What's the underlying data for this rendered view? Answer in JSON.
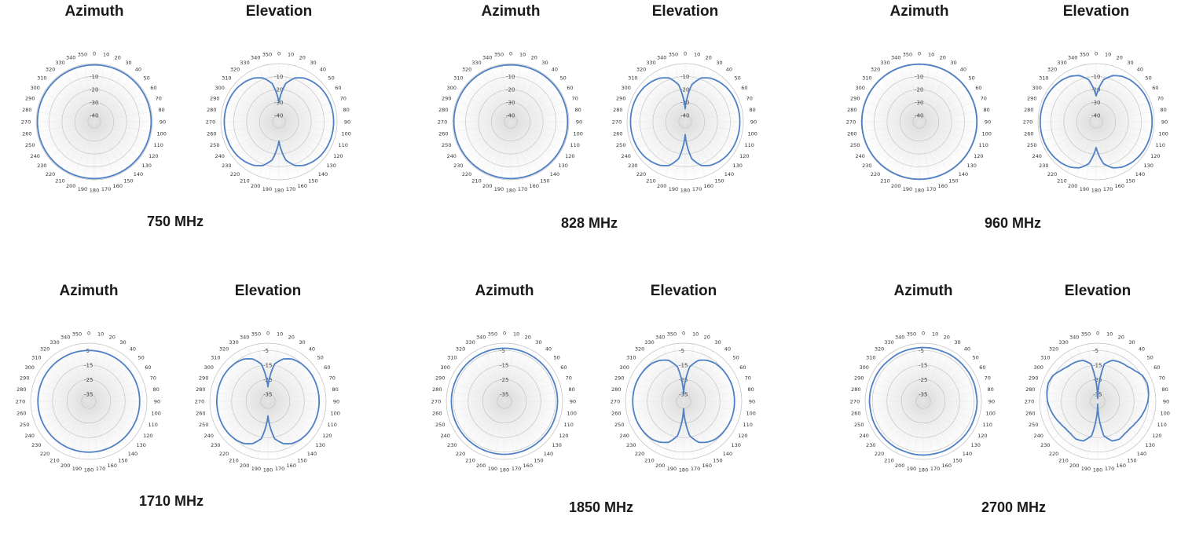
{
  "panels": [
    {
      "frequency": "750 MHz",
      "az_title": "Azimuth",
      "el_title": "Elevation",
      "radial_ticks": [
        "-10",
        "-20",
        "-30",
        "-40"
      ]
    },
    {
      "frequency": "828 MHz",
      "az_title": "Azimuth",
      "el_title": "Elevation",
      "radial_ticks": [
        "-10",
        "-20",
        "-30",
        "-40"
      ]
    },
    {
      "frequency": "960 MHz",
      "az_title": "Azimuth",
      "el_title": "Elevation",
      "radial_ticks": [
        "-10",
        "-20",
        "-30",
        "-40"
      ]
    },
    {
      "frequency": "1710 MHz",
      "az_title": "Azimuth",
      "el_title": "Elevation",
      "radial_ticks": [
        "-5",
        "-15",
        "-25",
        "-35"
      ]
    },
    {
      "frequency": "1850 MHz",
      "az_title": "Azimuth",
      "el_title": "Elevation",
      "radial_ticks": [
        "-5",
        "-15",
        "-25",
        "-35"
      ]
    },
    {
      "frequency": "2700 MHz",
      "az_title": "Azimuth",
      "el_title": "Elevation",
      "radial_ticks": [
        "-5",
        "-15",
        "-25",
        "-35"
      ]
    }
  ],
  "chart_data": [
    {
      "type": "polar-line",
      "title": "Azimuth",
      "subtitle": "750 MHz",
      "angle_ticks_deg": [
        0,
        10,
        20,
        30,
        40,
        50,
        60,
        70,
        80,
        90,
        100,
        110,
        120,
        130,
        140,
        150,
        160,
        170,
        180,
        190,
        200,
        210,
        220,
        230,
        240,
        250,
        260,
        270,
        280,
        290,
        300,
        310,
        320,
        330,
        340,
        350
      ],
      "radial_ticks": [
        -10,
        -20,
        -30,
        -40
      ],
      "rlim": [
        -45,
        0
      ],
      "series": [
        {
          "pattern": "omni",
          "values_db": [
            -1,
            -1,
            -1,
            -1,
            -1,
            -1,
            -1,
            -1,
            -1,
            -1,
            -1,
            -1,
            -1,
            -1,
            -1,
            -1,
            -1,
            -1,
            -1,
            -1,
            -1,
            -1,
            -1,
            -1,
            -1,
            -1,
            -1,
            -1,
            -1,
            -1,
            -1,
            -1,
            -1,
            -1,
            -1,
            -1
          ]
        }
      ],
      "line_color": "#4f7fc4"
    },
    {
      "type": "polar-line",
      "title": "Elevation",
      "subtitle": "750 MHz",
      "angle_ticks_deg": [
        0,
        10,
        20,
        30,
        40,
        50,
        60,
        70,
        80,
        90,
        100,
        110,
        120,
        130,
        140,
        150,
        160,
        170,
        180,
        190,
        200,
        210,
        220,
        230,
        240,
        250,
        260,
        270,
        280,
        290,
        300,
        310,
        320,
        330,
        340,
        350
      ],
      "radial_ticks": [
        -10,
        -20,
        -30,
        -40
      ],
      "rlim": [
        -45,
        0
      ],
      "series": [
        {
          "pattern": "figure-eight",
          "values_db": [
            -30,
            -15,
            -9,
            -6,
            -4.5,
            -3.5,
            -3,
            -2.8,
            -2.7,
            -2.7,
            -2.7,
            -2.8,
            -3,
            -3.5,
            -4.5,
            -6,
            -9,
            -15,
            -30,
            -15,
            -9,
            -6,
            -4.5,
            -3.5,
            -3,
            -2.8,
            -2.7,
            -2.7,
            -2.7,
            -2.8,
            -3,
            -3.5,
            -4.5,
            -6,
            -9,
            -15
          ]
        }
      ],
      "line_color": "#4f7fc4"
    },
    {
      "type": "polar-line",
      "title": "Azimuth",
      "subtitle": "828 MHz",
      "angle_ticks_deg": [
        0,
        10,
        20,
        30,
        40,
        50,
        60,
        70,
        80,
        90,
        100,
        110,
        120,
        130,
        140,
        150,
        160,
        170,
        180,
        190,
        200,
        210,
        220,
        230,
        240,
        250,
        260,
        270,
        280,
        290,
        300,
        310,
        320,
        330,
        340,
        350
      ],
      "radial_ticks": [
        -10,
        -20,
        -30,
        -40
      ],
      "rlim": [
        -45,
        0
      ],
      "series": [
        {
          "pattern": "omni",
          "values_db": [
            -1,
            -1,
            -1,
            -1,
            -1,
            -1,
            -1,
            -1,
            -1,
            -1,
            -1,
            -1,
            -1,
            -1,
            -1,
            -1,
            -1,
            -1,
            -1,
            -1,
            -1,
            -1,
            -1,
            -1,
            -1,
            -1,
            -1,
            -1,
            -1,
            -1,
            -1,
            -1,
            -1,
            -1,
            -1,
            -1
          ]
        }
      ],
      "line_color": "#4f7fc4"
    },
    {
      "type": "polar-line",
      "title": "Elevation",
      "subtitle": "828 MHz",
      "angle_ticks_deg": [
        0,
        10,
        20,
        30,
        40,
        50,
        60,
        70,
        80,
        90,
        100,
        110,
        120,
        130,
        140,
        150,
        160,
        170,
        180,
        190,
        200,
        210,
        220,
        230,
        240,
        250,
        260,
        270,
        280,
        290,
        300,
        310,
        320,
        330,
        340,
        350
      ],
      "radial_ticks": [
        -10,
        -20,
        -30,
        -40
      ],
      "rlim": [
        -45,
        0
      ],
      "series": [
        {
          "pattern": "figure-eight",
          "values_db": [
            -35,
            -16,
            -9,
            -6,
            -4.5,
            -3.5,
            -3,
            -2.8,
            -2.7,
            -2.7,
            -2.7,
            -2.8,
            -3,
            -3.5,
            -4.5,
            -6,
            -9,
            -16,
            -35,
            -16,
            -9,
            -6,
            -4.5,
            -3.5,
            -3,
            -2.8,
            -2.7,
            -2.7,
            -2.7,
            -2.8,
            -3,
            -3.5,
            -4.5,
            -6,
            -9,
            -16
          ]
        }
      ],
      "line_color": "#4f7fc4"
    },
    {
      "type": "polar-line",
      "title": "Azimuth",
      "subtitle": "960 MHz",
      "angle_ticks_deg": [
        0,
        10,
        20,
        30,
        40,
        50,
        60,
        70,
        80,
        90,
        100,
        110,
        120,
        130,
        140,
        150,
        160,
        170,
        180,
        190,
        200,
        210,
        220,
        230,
        240,
        250,
        260,
        270,
        280,
        290,
        300,
        310,
        320,
        330,
        340,
        350
      ],
      "radial_ticks": [
        -10,
        -20,
        -30,
        -40
      ],
      "rlim": [
        -45,
        0
      ],
      "series": [
        {
          "pattern": "omni",
          "values_db": [
            -0.5,
            -0.5,
            -0.5,
            -0.5,
            -0.5,
            -0.5,
            -0.5,
            -0.5,
            -0.5,
            -0.5,
            -0.5,
            -0.5,
            -0.5,
            -0.5,
            -0.5,
            -0.5,
            -0.5,
            -0.5,
            -0.5,
            -0.5,
            -0.5,
            -0.5,
            -0.5,
            -0.5,
            -0.5,
            -0.5,
            -0.5,
            -0.5,
            -0.5,
            -0.5,
            -0.5,
            -0.5,
            -0.5,
            -0.5,
            -0.5,
            -0.5
          ]
        }
      ],
      "line_color": "#4f7fc4"
    },
    {
      "type": "polar-line",
      "title": "Elevation",
      "subtitle": "960 MHz",
      "angle_ticks_deg": [
        0,
        10,
        20,
        30,
        40,
        50,
        60,
        70,
        80,
        90,
        100,
        110,
        120,
        130,
        140,
        150,
        160,
        170,
        180,
        190,
        200,
        210,
        220,
        230,
        240,
        250,
        260,
        270,
        280,
        290,
        300,
        310,
        320,
        330,
        340,
        350
      ],
      "radial_ticks": [
        -10,
        -20,
        -30,
        -40
      ],
      "rlim": [
        -45,
        0
      ],
      "series": [
        {
          "pattern": "figure-eight",
          "values_db": [
            -25,
            -12,
            -7,
            -4.5,
            -3.2,
            -2.5,
            -2,
            -1.8,
            -1.7,
            -1.7,
            -1.7,
            -1.8,
            -2,
            -2.5,
            -3.2,
            -4.5,
            -7,
            -12,
            -25,
            -12,
            -7,
            -4.5,
            -3.2,
            -2.5,
            -2,
            -1.8,
            -1.7,
            -1.7,
            -1.7,
            -1.8,
            -2,
            -2.5,
            -3.2,
            -4.5,
            -7,
            -12
          ]
        }
      ],
      "line_color": "#4f7fc4"
    },
    {
      "type": "polar-line",
      "title": "Azimuth",
      "subtitle": "1710 MHz",
      "angle_ticks_deg": [
        0,
        10,
        20,
        30,
        40,
        50,
        60,
        70,
        80,
        90,
        100,
        110,
        120,
        130,
        140,
        150,
        160,
        170,
        180,
        190,
        200,
        210,
        220,
        230,
        240,
        250,
        260,
        270,
        280,
        290,
        300,
        310,
        320,
        330,
        340,
        350
      ],
      "radial_ticks": [
        -5,
        -15,
        -25,
        -35
      ],
      "rlim": [
        -40,
        0
      ],
      "series": [
        {
          "pattern": "omni",
          "values_db": [
            -5,
            -5,
            -5,
            -5,
            -5,
            -5,
            -5,
            -5,
            -5,
            -5,
            -5,
            -5,
            -5,
            -5,
            -5,
            -5,
            -5,
            -5,
            -5,
            -5,
            -5,
            -5,
            -5,
            -5,
            -5,
            -5,
            -5,
            -5,
            -5,
            -5,
            -5,
            -5,
            -5,
            -5,
            -5,
            -5
          ]
        }
      ],
      "line_color": "#4f7fc4"
    },
    {
      "type": "polar-line",
      "title": "Elevation",
      "subtitle": "1710 MHz",
      "angle_ticks_deg": [
        0,
        10,
        20,
        30,
        40,
        50,
        60,
        70,
        80,
        90,
        100,
        110,
        120,
        130,
        140,
        150,
        160,
        170,
        180,
        190,
        200,
        210,
        220,
        230,
        240,
        250,
        260,
        270,
        280,
        290,
        300,
        310,
        320,
        330,
        340,
        350
      ],
      "radial_ticks": [
        -5,
        -15,
        -25,
        -35
      ],
      "rlim": [
        -40,
        0
      ],
      "series": [
        {
          "pattern": "figure-eight",
          "values_db": [
            -30,
            -14,
            -9,
            -6.5,
            -5.5,
            -5,
            -4.8,
            -4.8,
            -4.8,
            -4.8,
            -4.8,
            -4.8,
            -4.8,
            -5,
            -5.5,
            -6.5,
            -9,
            -14,
            -30,
            -14,
            -9,
            -6.5,
            -5.5,
            -5,
            -4.8,
            -4.8,
            -4.8,
            -4.8,
            -4.8,
            -4.8,
            -4.8,
            -5,
            -5.5,
            -6.5,
            -9,
            -14
          ]
        }
      ],
      "line_color": "#4f7fc4"
    },
    {
      "type": "polar-line",
      "title": "Azimuth",
      "subtitle": "1850 MHz",
      "angle_ticks_deg": [
        0,
        10,
        20,
        30,
        40,
        50,
        60,
        70,
        80,
        90,
        100,
        110,
        120,
        130,
        140,
        150,
        160,
        170,
        180,
        190,
        200,
        210,
        220,
        230,
        240,
        250,
        260,
        270,
        280,
        290,
        300,
        310,
        320,
        330,
        340,
        350
      ],
      "radial_ticks": [
        -5,
        -15,
        -25,
        -35
      ],
      "rlim": [
        -40,
        0
      ],
      "series": [
        {
          "pattern": "omni",
          "values_db": [
            -3.5,
            -3.5,
            -3.5,
            -3.5,
            -3.5,
            -3.5,
            -3.5,
            -3.5,
            -3.5,
            -3.5,
            -3.5,
            -3.5,
            -3.5,
            -3.5,
            -3.5,
            -3.5,
            -3.5,
            -3.5,
            -3.5,
            -3.5,
            -3.5,
            -3.5,
            -3.5,
            -3.5,
            -3.5,
            -3.5,
            -3.5,
            -3.5,
            -3.5,
            -3.5,
            -3.5,
            -3.5,
            -3.5,
            -3.5,
            -3.5,
            -3.5
          ]
        }
      ],
      "line_color": "#4f7fc4"
    },
    {
      "type": "polar-line",
      "title": "Elevation",
      "subtitle": "1850 MHz",
      "angle_ticks_deg": [
        0,
        10,
        20,
        30,
        40,
        50,
        60,
        70,
        80,
        90,
        100,
        110,
        120,
        130,
        140,
        150,
        160,
        170,
        180,
        190,
        200,
        210,
        220,
        230,
        240,
        250,
        260,
        270,
        280,
        290,
        300,
        310,
        320,
        330,
        340,
        350
      ],
      "radial_ticks": [
        -5,
        -15,
        -25,
        -35
      ],
      "rlim": [
        -40,
        0
      ],
      "series": [
        {
          "pattern": "figure-eight",
          "values_db": [
            -35,
            -16,
            -10,
            -7.5,
            -6,
            -5.5,
            -5.2,
            -5,
            -5,
            -5,
            -5,
            -5,
            -5.2,
            -5.5,
            -6,
            -7.5,
            -10,
            -16,
            -35,
            -16,
            -10,
            -7.5,
            -6,
            -5.5,
            -5.2,
            -5,
            -5,
            -5,
            -5,
            -5,
            -5.2,
            -5.5,
            -6,
            -7.5,
            -10,
            -16
          ]
        }
      ],
      "line_color": "#4f7fc4"
    },
    {
      "type": "polar-line",
      "title": "Azimuth",
      "subtitle": "2700 MHz",
      "angle_ticks_deg": [
        0,
        10,
        20,
        30,
        40,
        50,
        60,
        70,
        80,
        90,
        100,
        110,
        120,
        130,
        140,
        150,
        160,
        170,
        180,
        190,
        200,
        210,
        220,
        230,
        240,
        250,
        260,
        270,
        280,
        290,
        300,
        310,
        320,
        330,
        340,
        350
      ],
      "radial_ticks": [
        -5,
        -15,
        -25,
        -35
      ],
      "rlim": [
        -40,
        0
      ],
      "series": [
        {
          "pattern": "omni",
          "values_db": [
            -3,
            -3,
            -3.2,
            -3,
            -3,
            -3.1,
            -3,
            -3,
            -3.2,
            -3,
            -3,
            -3.1,
            -3,
            -3,
            -3.2,
            -3,
            -3,
            -3.1,
            -3,
            -3,
            -3.2,
            -3,
            -3,
            -3.1,
            -3,
            -3,
            -3.2,
            -3,
            -3,
            -3.1,
            -3,
            -3,
            -3.2,
            -3,
            -3,
            -3.1
          ]
        }
      ],
      "line_color": "#4f7fc4"
    },
    {
      "type": "polar-line",
      "title": "Elevation",
      "subtitle": "2700 MHz",
      "angle_ticks_deg": [
        0,
        10,
        20,
        30,
        40,
        50,
        60,
        70,
        80,
        90,
        100,
        110,
        120,
        130,
        140,
        150,
        160,
        170,
        180,
        190,
        200,
        210,
        220,
        230,
        240,
        250,
        260,
        270,
        280,
        290,
        300,
        310,
        320,
        330,
        340,
        350
      ],
      "radial_ticks": [
        -5,
        -15,
        -25,
        -35
      ],
      "rlim": [
        -40,
        0
      ],
      "series": [
        {
          "pattern": "figure-eight",
          "values_db": [
            -38,
            -14,
            -10,
            -9,
            -8.5,
            -7,
            -4.5,
            -3.8,
            -4.5,
            -5.5,
            -7,
            -8.5,
            -10,
            -11,
            -11,
            -10,
            -11,
            -16,
            -38,
            -16,
            -11,
            -10,
            -11,
            -11,
            -10,
            -8.5,
            -7,
            -5.5,
            -4.5,
            -3.8,
            -4.5,
            -7,
            -8.5,
            -9,
            -10,
            -14
          ]
        }
      ],
      "line_color": "#4f7fc4"
    }
  ]
}
